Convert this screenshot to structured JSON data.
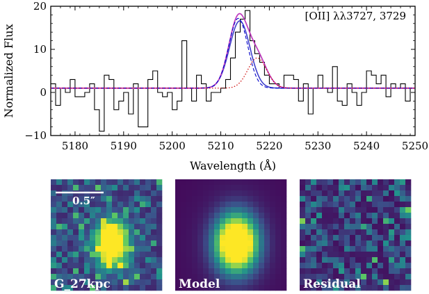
{
  "chart_data": [
    {
      "type": "line",
      "xlabel": "Wavelength (Å)",
      "ylabel": "Normalized Flux",
      "xlim": [
        5175,
        5250
      ],
      "ylim": [
        -10,
        20
      ],
      "xticks": [
        5180,
        5190,
        5200,
        5210,
        5220,
        5230,
        5240,
        5250
      ],
      "yticks": [
        -10,
        0,
        10,
        20
      ],
      "annotation": "[OII] λλ3727, 3729",
      "series": [
        {
          "style": "step",
          "color": "#000000",
          "x": [
            5175,
            5176,
            5177,
            5178,
            5179,
            5180,
            5181,
            5182,
            5183,
            5184,
            5185,
            5186,
            5187,
            5188,
            5189,
            5190,
            5191,
            5192,
            5193,
            5194,
            5195,
            5196,
            5197,
            5198,
            5199,
            5200,
            5201,
            5202,
            5203,
            5204,
            5205,
            5206,
            5207,
            5208,
            5209,
            5210,
            5211,
            5212,
            5213,
            5214,
            5215,
            5216,
            5217,
            5218,
            5219,
            5220,
            5221,
            5222,
            5223,
            5224,
            5225,
            5226,
            5227,
            5228,
            5229,
            5230,
            5231,
            5232,
            5233,
            5234,
            5235,
            5236,
            5237,
            5238,
            5239,
            5240,
            5241,
            5242,
            5243,
            5244,
            5245,
            5246,
            5247,
            5248,
            5249
          ],
          "y": [
            2,
            -3,
            1,
            0,
            3,
            -1,
            -1,
            0,
            2,
            -4,
            -9,
            4,
            3,
            -4,
            -2,
            0,
            -5,
            2,
            -8,
            -8,
            3,
            5,
            0,
            -1,
            0,
            -4,
            -2,
            12,
            1,
            -2,
            4,
            2,
            -2,
            0,
            0,
            1,
            3,
            8,
            14,
            17,
            19,
            12,
            9,
            7,
            4,
            2,
            2,
            1,
            4,
            4,
            3,
            -2,
            2,
            -5,
            1,
            4,
            1,
            0,
            6,
            -2,
            -3,
            2,
            0,
            -3,
            0,
            5,
            4,
            2,
            4,
            -1,
            2,
            1,
            2,
            -2,
            1
          ]
        },
        {
          "style": "dashed",
          "color": "#0000cc",
          "component": "gauss1",
          "amp": 16.2,
          "mu": 5213.6,
          "sigma": 1.95,
          "continuum": 1.0
        },
        {
          "style": "dotted",
          "color": "#cc0000",
          "component": "gauss2",
          "amp": 7.0,
          "mu": 5217.5,
          "sigma": 1.95,
          "continuum": 1.0
        },
        {
          "style": "solid",
          "color": "#c040c0",
          "component": "total"
        },
        {
          "style": "solid",
          "color": "#4040cc",
          "component": "total-alt",
          "amp": 15.6,
          "mu": 5213.9,
          "sigma": 2.1,
          "continuum": 1.0
        }
      ]
    },
    {
      "type": "heatmap",
      "panels": [
        {
          "label": "G_27kpc",
          "scale_label": "0.5″"
        },
        {
          "label": "Model"
        },
        {
          "label": "Residual"
        }
      ],
      "colormap": [
        "#440154",
        "#3b528b",
        "#21918c",
        "#5ec962",
        "#fde725"
      ]
    }
  ]
}
